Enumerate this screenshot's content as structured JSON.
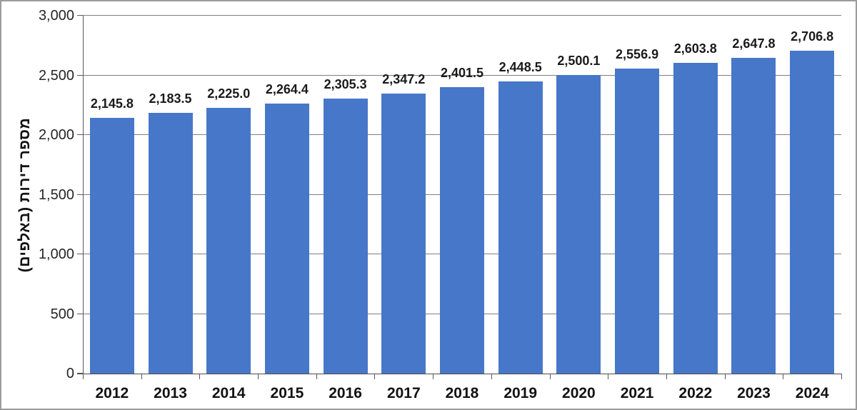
{
  "chart_data": {
    "type": "bar",
    "title": "",
    "xlabel": "",
    "ylabel": "מספר דירות (באלפים)",
    "categories": [
      "2012",
      "2013",
      "2014",
      "2015",
      "2016",
      "2017",
      "2018",
      "2019",
      "2020",
      "2021",
      "2022",
      "2023",
      "2024"
    ],
    "values": [
      2145.8,
      2183.5,
      2225.0,
      2264.4,
      2305.3,
      2347.2,
      2401.5,
      2448.5,
      2500.1,
      2556.9,
      2603.8,
      2647.8,
      2706.8
    ],
    "value_labels": [
      "2,145.8",
      "2,183.5",
      "2,225.0",
      "2,264.4",
      "2,305.3",
      "2,347.2",
      "2,401.5",
      "2,448.5",
      "2,500.1",
      "2,556.9",
      "2,603.8",
      "2,647.8",
      "2,706.8"
    ],
    "ylim": [
      0,
      3000
    ],
    "ytick_values": [
      0,
      500,
      1000,
      1500,
      2000,
      2500,
      3000
    ],
    "ytick_labels": [
      "0",
      "500",
      "1,000",
      "1,500",
      "2,000",
      "2,500",
      "3,000"
    ],
    "grid": true,
    "legend": "none",
    "bar_color": "#4777c9",
    "gridline_color": "#7f7f7f",
    "axis_color": "#595959"
  }
}
